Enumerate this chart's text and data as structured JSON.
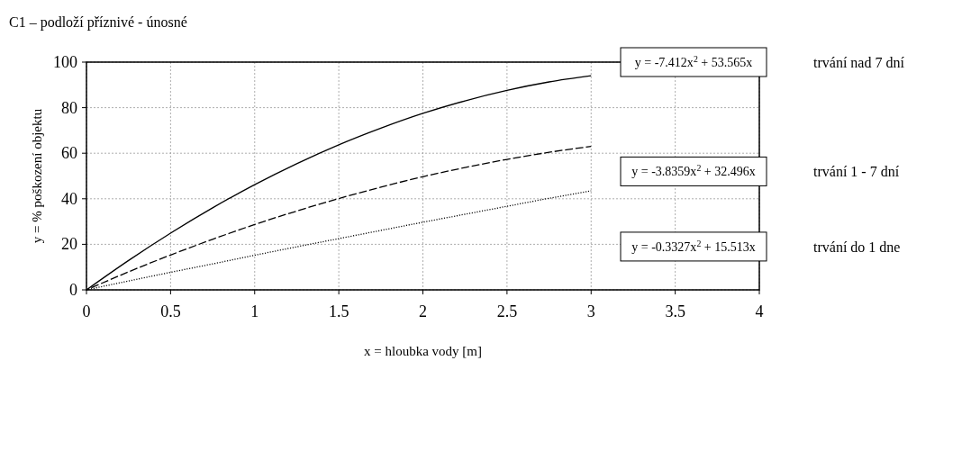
{
  "chart_data": {
    "type": "line",
    "title": "C1 – podloží příznivé - únosné",
    "xlabel": "x = hloubka vody  [m]",
    "ylabel": "y = % poškození objektu",
    "x": [
      0,
      0.25,
      0.5,
      0.75,
      1,
      1.25,
      1.5,
      1.75,
      2,
      2.25,
      2.5,
      2.75,
      3
    ],
    "series": [
      {
        "name": "trvání nad 7 dní",
        "color": "#000000",
        "line_style": "solid",
        "values": [
          0,
          12.9,
          24.9,
          36.0,
          46.2,
          55.4,
          63.7,
          71.0,
          77.5,
          83.0,
          87.6,
          91.3,
          94.0
        ]
      },
      {
        "name": "trvání 1 - 7 dní",
        "color": "#000000",
        "line_style": "dashed",
        "values": [
          0,
          7.9,
          15.3,
          22.2,
          28.7,
          34.6,
          40.1,
          45.1,
          49.7,
          53.7,
          57.3,
          60.4,
          63.0
        ]
      },
      {
        "name": "trvání do 1 dne",
        "color": "#000000",
        "line_style": "dotted",
        "values": [
          0,
          3.9,
          7.7,
          11.4,
          15.2,
          18.9,
          22.5,
          26.1,
          29.7,
          33.2,
          36.7,
          40.2,
          43.5
        ]
      }
    ],
    "annotations": [
      "y = -7.412x$^{2}$ + 53.565x",
      "y = -3.8359x$^{2}$ + 32.496x",
      "y = -0.3327x$^{2}$ + 15.513x"
    ],
    "xlim": [
      0,
      4
    ],
    "xticks": [
      0,
      0.5,
      1,
      1.5,
      2,
      2.5,
      3,
      3.5,
      4
    ],
    "ylim": [
      0,
      100
    ],
    "yticks": [
      0,
      20,
      40,
      60,
      80,
      100
    ],
    "grid": true
  }
}
